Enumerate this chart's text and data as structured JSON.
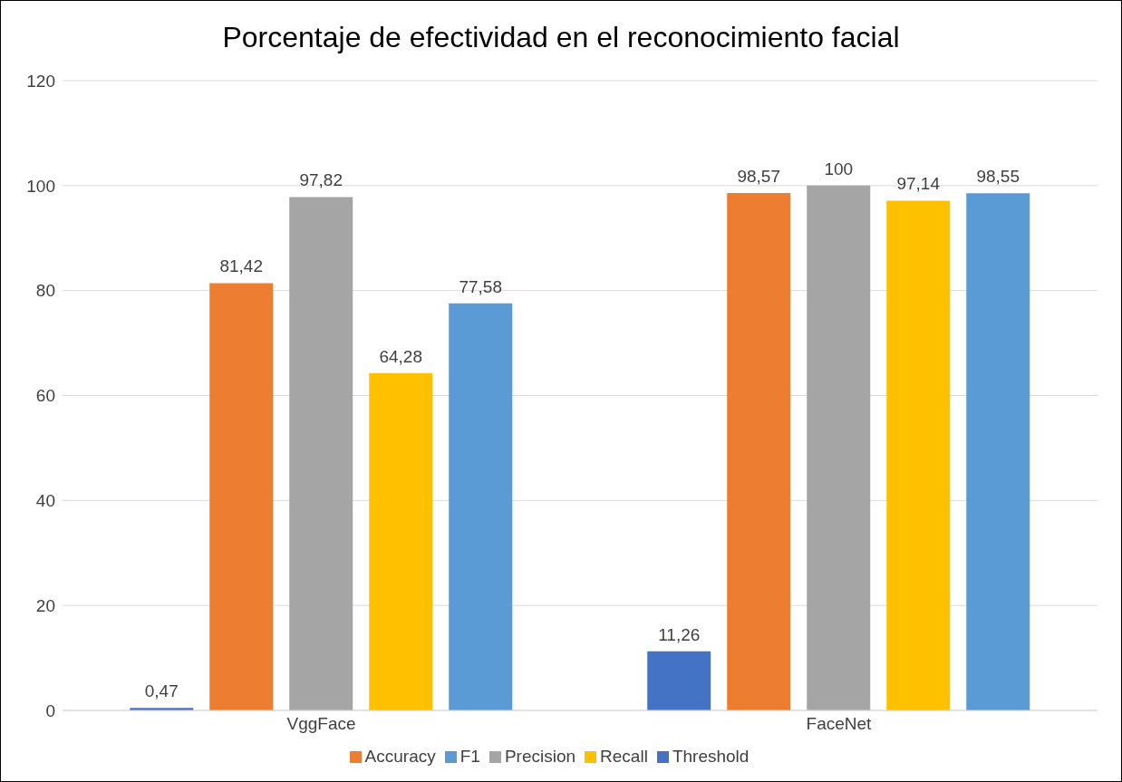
{
  "chart_data": {
    "type": "bar",
    "title": "Porcentaje de efectividad en el reconocimiento facial",
    "categories": [
      "VggFace",
      "FaceNet"
    ],
    "series": [
      {
        "name": "Threshold",
        "color": "#4472c4",
        "values": [
          0.47,
          11.26
        ],
        "value_labels": [
          "0,47",
          "11,26"
        ]
      },
      {
        "name": "Accuracy",
        "color": "#ed7d31",
        "values": [
          81.42,
          98.57
        ],
        "value_labels": [
          "81,42",
          "98,57"
        ]
      },
      {
        "name": "Precision",
        "color": "#a5a5a5",
        "values": [
          97.82,
          100
        ],
        "value_labels": [
          "97,82",
          "100"
        ]
      },
      {
        "name": "Recall",
        "color": "#ffc000",
        "values": [
          64.28,
          97.14
        ],
        "value_labels": [
          "64,28",
          "97,14"
        ]
      },
      {
        "name": "F1",
        "color": "#5b9bd5",
        "values": [
          77.58,
          98.55
        ],
        "value_labels": [
          "77,58",
          "98,55"
        ]
      }
    ],
    "ylim": [
      0,
      120
    ],
    "yticks": [
      0,
      20,
      40,
      60,
      80,
      100,
      120
    ],
    "grid": "y",
    "legend": "bottom"
  }
}
